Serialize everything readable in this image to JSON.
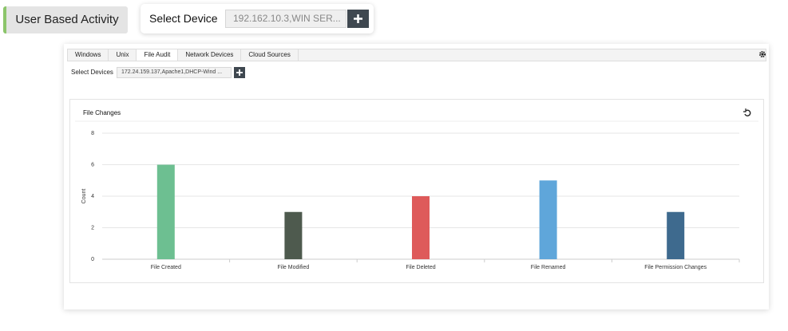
{
  "header": {
    "title": "User Based Activity",
    "select_label": "Select Device",
    "select_value": "192.162.10.3,WIN SER..."
  },
  "tabs": [
    "Windows",
    "Unix",
    "File Audit",
    "Network Devices",
    "Cloud Sources"
  ],
  "active_tab": 2,
  "panel": {
    "select_label": "Select Devices",
    "select_value": "172.24.159.137,Apache1,DHCP-Wind ..."
  },
  "chart_data": {
    "type": "bar",
    "title": "File Changes",
    "y_label": "Count",
    "categories": [
      "File Created",
      "File Modified",
      "File Deleted",
      "File Renamed",
      "File Permission Changes"
    ],
    "values": [
      6,
      3,
      4,
      5,
      3
    ],
    "colors": [
      "#6dbf91",
      "#4e5a4e",
      "#de5a5a",
      "#5fa6da",
      "#3e6a8e"
    ],
    "ylim": [
      0,
      8
    ],
    "yticks": [
      0,
      2,
      4,
      6,
      8
    ],
    "grid": true
  }
}
